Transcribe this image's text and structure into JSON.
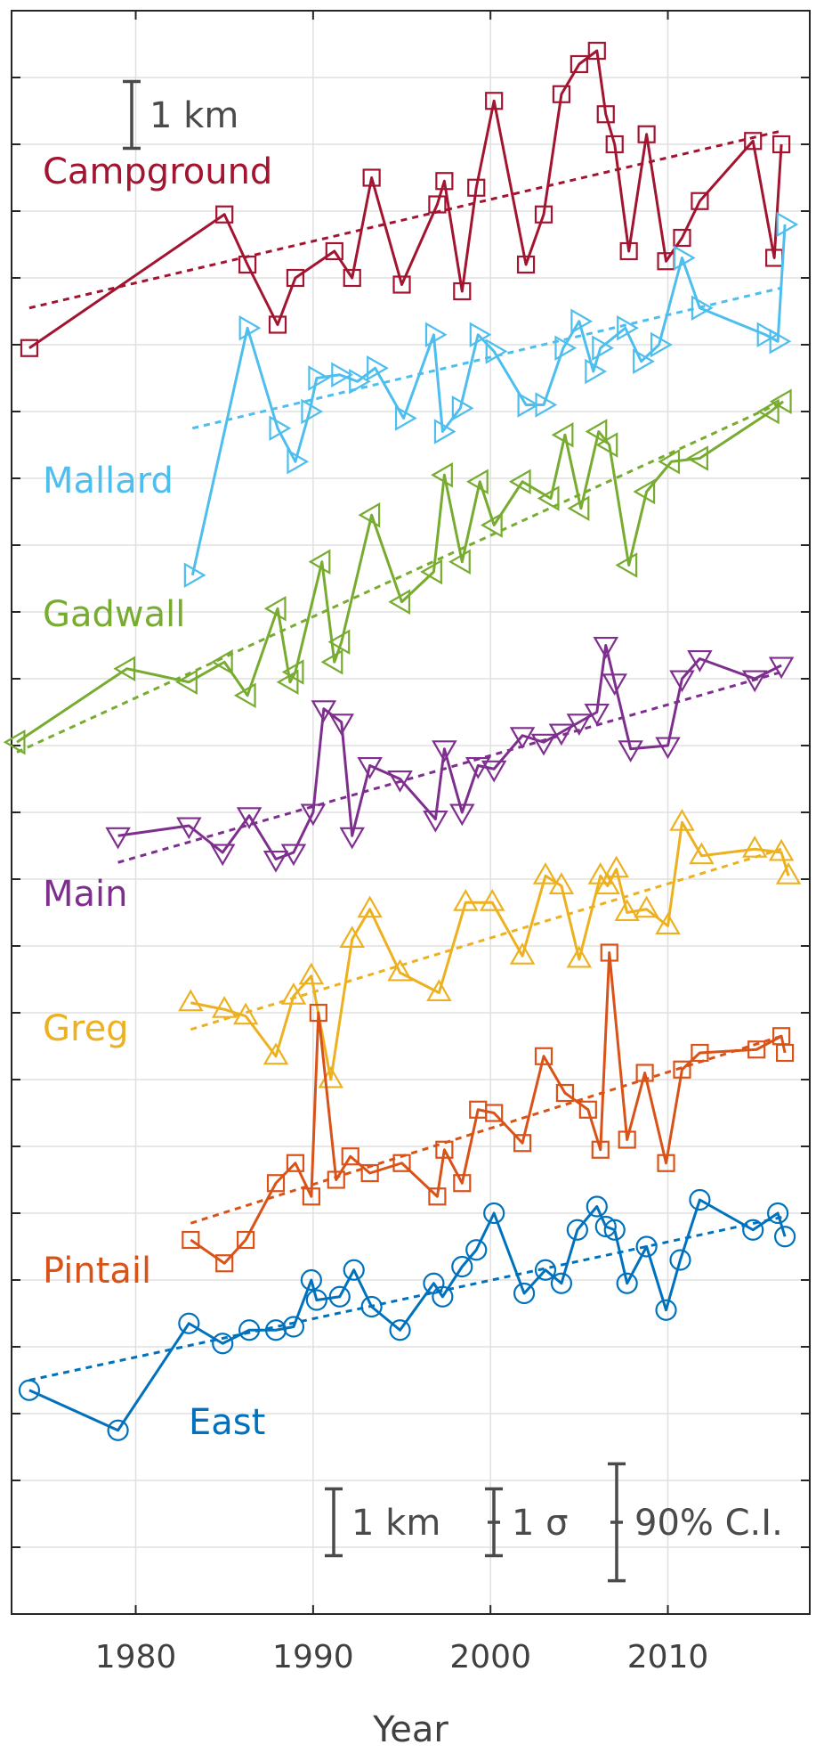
{
  "chart_data": {
    "type": "line",
    "xlabel": "Year",
    "ylabel": "",
    "xlim": [
      1973,
      2018
    ],
    "ylim": [
      0,
      24
    ],
    "x_ticks": [
      {
        "value": 1980,
        "label": "1980"
      },
      {
        "value": 1990,
        "label": "1990"
      },
      {
        "value": 2000,
        "label": "2000"
      },
      {
        "value": 2010,
        "label": "2010"
      }
    ],
    "grid": true,
    "scale_bars": [
      {
        "label": "1 km",
        "span": 1,
        "position": "top-left"
      },
      {
        "label": "1 km",
        "span": 1,
        "position": "bottom"
      },
      {
        "label": "1 σ",
        "span": 1,
        "position": "bottom"
      },
      {
        "label": "90% C.I.",
        "span": 1.75,
        "position": "bottom"
      }
    ],
    "series": [
      {
        "name": "Campground",
        "color": "#a2142f",
        "marker": "square",
        "points": [
          [
            1974,
            18.95
          ],
          [
            1985,
            20.95
          ],
          [
            1986.3,
            20.2
          ],
          [
            1988,
            19.3
          ],
          [
            1989,
            20.0
          ],
          [
            1991.2,
            20.4
          ],
          [
            1992.2,
            20.0
          ],
          [
            1993.3,
            21.5
          ],
          [
            1995,
            19.9
          ],
          [
            1997,
            21.1
          ],
          [
            1997.4,
            21.45
          ],
          [
            1998.4,
            19.8
          ],
          [
            1999.2,
            21.35
          ],
          [
            2000.2,
            22.65
          ],
          [
            2002,
            20.2
          ],
          [
            2003,
            20.95
          ],
          [
            2004,
            22.75
          ],
          [
            2005,
            23.2
          ],
          [
            2006,
            23.4
          ],
          [
            2006.5,
            22.45
          ],
          [
            2007,
            22.0
          ],
          [
            2007.8,
            20.4
          ],
          [
            2008.8,
            22.15
          ],
          [
            2009.9,
            20.25
          ],
          [
            2010.8,
            20.6
          ],
          [
            2011.8,
            21.15
          ],
          [
            2014.8,
            22.05
          ],
          [
            2016,
            20.3
          ],
          [
            2016.4,
            22.0
          ]
        ],
        "trend": [
          [
            1974,
            19.55
          ],
          [
            2016.4,
            22.2
          ]
        ]
      },
      {
        "name": "Mallard",
        "color": "#4dbeee",
        "marker": "triangle-right",
        "points": [
          [
            1983.2,
            15.55
          ],
          [
            1986.3,
            19.25
          ],
          [
            1988,
            17.75
          ],
          [
            1989,
            17.25
          ],
          [
            1989.8,
            18.0
          ],
          [
            1990.2,
            18.5
          ],
          [
            1991.5,
            18.55
          ],
          [
            1992.5,
            18.45
          ],
          [
            1993.5,
            18.65
          ],
          [
            1995.1,
            17.9
          ],
          [
            1996.8,
            19.15
          ],
          [
            1997.3,
            17.7
          ],
          [
            1998.3,
            18.05
          ],
          [
            1999.3,
            19.15
          ],
          [
            2000.2,
            18.9
          ],
          [
            2002,
            18.1
          ],
          [
            2003,
            18.1
          ],
          [
            2004.1,
            18.95
          ],
          [
            2005,
            19.35
          ],
          [
            2005.8,
            18.6
          ],
          [
            2006.2,
            18.95
          ],
          [
            2007.6,
            19.25
          ],
          [
            2008.5,
            18.75
          ],
          [
            2009.5,
            19.0
          ],
          [
            2010.8,
            20.3
          ],
          [
            2011.8,
            19.55
          ],
          [
            2015.5,
            19.15
          ],
          [
            2016.2,
            19.05
          ],
          [
            2016.6,
            20.8
          ]
        ],
        "trend": [
          [
            1983.2,
            17.75
          ],
          [
            2016.4,
            19.85
          ]
        ]
      },
      {
        "name": "Gadwall",
        "color": "#77ac30",
        "marker": "triangle-left",
        "points": [
          [
            1973.3,
            13.05
          ],
          [
            1979.5,
            14.15
          ],
          [
            1983,
            13.95
          ],
          [
            1985,
            14.25
          ],
          [
            1986.3,
            13.75
          ],
          [
            1988,
            15.05
          ],
          [
            1988.7,
            13.95
          ],
          [
            1989,
            14.1
          ],
          [
            1990.5,
            15.75
          ],
          [
            1991.2,
            14.25
          ],
          [
            1991.6,
            14.55
          ],
          [
            1993.3,
            16.45
          ],
          [
            1995,
            15.15
          ],
          [
            1996.8,
            15.6
          ],
          [
            1997.4,
            17.05
          ],
          [
            1998.4,
            15.75
          ],
          [
            1999.4,
            16.95
          ],
          [
            2000.2,
            16.3
          ],
          [
            2001.8,
            16.95
          ],
          [
            2003.4,
            16.7
          ],
          [
            2004.2,
            17.65
          ],
          [
            2005.1,
            16.55
          ],
          [
            2006.1,
            17.7
          ],
          [
            2006.7,
            17.5
          ],
          [
            2007.8,
            15.7
          ],
          [
            2008.8,
            16.8
          ],
          [
            2010.2,
            17.25
          ],
          [
            2011.8,
            17.3
          ],
          [
            2015.8,
            18.0
          ],
          [
            2016.5,
            18.15
          ]
        ],
        "trend": [
          [
            1973.3,
            12.9
          ],
          [
            2016.5,
            18.15
          ]
        ]
      },
      {
        "name": "Main",
        "color": "#7e2f8e",
        "marker": "triangle-down",
        "points": [
          [
            1979,
            11.65
          ],
          [
            1983,
            11.8
          ],
          [
            1984.9,
            11.4
          ],
          [
            1986.4,
            11.95
          ],
          [
            1987.9,
            11.3
          ],
          [
            1988.9,
            11.4
          ],
          [
            1990,
            12.0
          ],
          [
            1990.6,
            13.55
          ],
          [
            1991.6,
            13.35
          ],
          [
            1992.2,
            11.65
          ],
          [
            1993.2,
            12.7
          ],
          [
            1994.9,
            12.5
          ],
          [
            1996.9,
            11.9
          ],
          [
            1997.4,
            12.95
          ],
          [
            1998.4,
            12.0
          ],
          [
            1999.3,
            12.7
          ],
          [
            2000.2,
            12.65
          ],
          [
            2001.8,
            13.15
          ],
          [
            2003,
            13.05
          ],
          [
            2004,
            13.2
          ],
          [
            2005,
            13.35
          ],
          [
            2006,
            13.5
          ],
          [
            2006.5,
            14.5
          ],
          [
            2007,
            13.95
          ],
          [
            2007.9,
            12.95
          ],
          [
            2010,
            13.0
          ],
          [
            2010.8,
            14.0
          ],
          [
            2011.8,
            14.3
          ],
          [
            2014.9,
            14.0
          ],
          [
            2016.4,
            14.2
          ]
        ],
        "trend": [
          [
            1979,
            11.25
          ],
          [
            2016.4,
            14.1
          ]
        ]
      },
      {
        "name": "Greg",
        "color": "#edb120",
        "marker": "triangle-up",
        "points": [
          [
            1983.1,
            9.15
          ],
          [
            1985,
            9.05
          ],
          [
            1986.2,
            8.95
          ],
          [
            1987.9,
            8.35
          ],
          [
            1988.9,
            9.25
          ],
          [
            1989.9,
            9.55
          ],
          [
            1991,
            8.0
          ],
          [
            1992.2,
            10.1
          ],
          [
            1993.2,
            10.55
          ],
          [
            1994.9,
            9.6
          ],
          [
            1997.1,
            9.3
          ],
          [
            1998.6,
            10.65
          ],
          [
            2000.1,
            10.65
          ],
          [
            2001.8,
            9.85
          ],
          [
            2003.1,
            11.05
          ],
          [
            2004,
            10.9
          ],
          [
            2005,
            9.8
          ],
          [
            2006.2,
            11.05
          ],
          [
            2006.6,
            10.9
          ],
          [
            2007.1,
            11.15
          ],
          [
            2007.7,
            10.5
          ],
          [
            2008.8,
            10.55
          ],
          [
            2010,
            10.3
          ],
          [
            2010.8,
            11.85
          ],
          [
            2011.9,
            11.35
          ],
          [
            2014.9,
            11.45
          ],
          [
            2016.4,
            11.4
          ],
          [
            2016.8,
            11.05
          ]
        ],
        "trend": [
          [
            1983.1,
            8.75
          ],
          [
            2016.4,
            11.45
          ]
        ]
      },
      {
        "name": "Pintail",
        "color": "#d95319",
        "marker": "square",
        "points": [
          [
            1983.1,
            5.6
          ],
          [
            1985,
            5.25
          ],
          [
            1986.2,
            5.6
          ],
          [
            1987.9,
            6.45
          ],
          [
            1989,
            6.75
          ],
          [
            1989.9,
            6.25
          ],
          [
            1990.3,
            9.0
          ],
          [
            1991.3,
            6.5
          ],
          [
            1992.1,
            6.85
          ],
          [
            1993.2,
            6.6
          ],
          [
            1995,
            6.75
          ],
          [
            1997,
            6.25
          ],
          [
            1997.4,
            6.95
          ],
          [
            1998.4,
            6.45
          ],
          [
            1999.3,
            7.55
          ],
          [
            2000.2,
            7.5
          ],
          [
            2001.8,
            7.05
          ],
          [
            2003,
            8.35
          ],
          [
            2004.2,
            7.8
          ],
          [
            2005.5,
            7.55
          ],
          [
            2006.2,
            6.95
          ],
          [
            2006.7,
            9.9
          ],
          [
            2007.7,
            7.1
          ],
          [
            2008.7,
            8.1
          ],
          [
            2009.9,
            6.75
          ],
          [
            2010.8,
            8.15
          ],
          [
            2011.8,
            8.4
          ],
          [
            2015,
            8.45
          ],
          [
            2016.4,
            8.65
          ],
          [
            2016.6,
            8.4
          ]
        ],
        "trend": [
          [
            1983.1,
            5.85
          ],
          [
            2016.4,
            8.65
          ]
        ]
      },
      {
        "name": "East",
        "color": "#0072bd",
        "marker": "circle",
        "points": [
          [
            1974,
            3.35
          ],
          [
            1979,
            2.75
          ],
          [
            1983,
            4.35
          ],
          [
            1984.9,
            4.05
          ],
          [
            1986.4,
            4.25
          ],
          [
            1987.9,
            4.25
          ],
          [
            1988.9,
            4.3
          ],
          [
            1989.9,
            5.0
          ],
          [
            1990.2,
            4.7
          ],
          [
            1991.5,
            4.75
          ],
          [
            1992.3,
            5.15
          ],
          [
            1993.3,
            4.6
          ],
          [
            1994.9,
            4.25
          ],
          [
            1996.8,
            4.95
          ],
          [
            1997.3,
            4.75
          ],
          [
            1998.4,
            5.2
          ],
          [
            1999.2,
            5.45
          ],
          [
            2000.2,
            6.0
          ],
          [
            2001.9,
            4.8
          ],
          [
            2003.1,
            5.15
          ],
          [
            2004,
            4.95
          ],
          [
            2004.9,
            5.75
          ],
          [
            2006,
            6.1
          ],
          [
            2006.5,
            5.8
          ],
          [
            2007,
            5.75
          ],
          [
            2007.7,
            4.95
          ],
          [
            2008.8,
            5.5
          ],
          [
            2009.9,
            4.55
          ],
          [
            2010.7,
            5.3
          ],
          [
            2011.8,
            6.2
          ],
          [
            2014.8,
            5.75
          ],
          [
            2016.2,
            6.0
          ],
          [
            2016.6,
            5.65
          ]
        ],
        "trend": [
          [
            1974,
            3.5
          ],
          [
            2016.6,
            5.95
          ]
        ]
      }
    ]
  }
}
